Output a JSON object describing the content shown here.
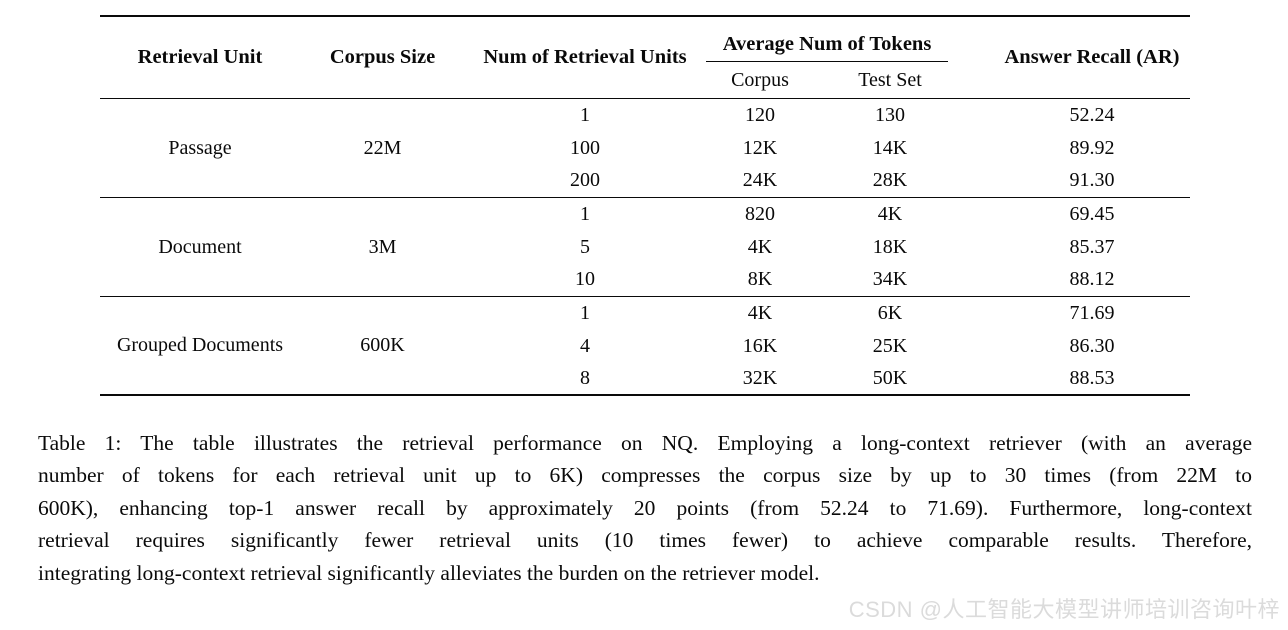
{
  "table": {
    "header": {
      "retrieval_unit": "Retrieval Unit",
      "corpus_size": "Corpus Size",
      "num_units": "Num of Retrieval Units",
      "avg_tokens": "Average Num of Tokens",
      "corpus": "Corpus",
      "test_set": "Test Set",
      "answer_recall": "Answer Recall (AR)"
    },
    "groups": [
      {
        "unit": "Passage",
        "size": "22M",
        "rows": [
          {
            "n": "1",
            "corpus": "120",
            "test": "130",
            "ar": "52.24"
          },
          {
            "n": "100",
            "corpus": "12K",
            "test": "14K",
            "ar": "89.92"
          },
          {
            "n": "200",
            "corpus": "24K",
            "test": "28K",
            "ar": "91.30"
          }
        ]
      },
      {
        "unit": "Document",
        "size": "3M",
        "rows": [
          {
            "n": "1",
            "corpus": "820",
            "test": "4K",
            "ar": "69.45"
          },
          {
            "n": "5",
            "corpus": "4K",
            "test": "18K",
            "ar": "85.37"
          },
          {
            "n": "10",
            "corpus": "8K",
            "test": "34K",
            "ar": "88.12"
          }
        ]
      },
      {
        "unit": "Grouped Documents",
        "size": "600K",
        "rows": [
          {
            "n": "1",
            "corpus": "4K",
            "test": "6K",
            "ar": "71.69"
          },
          {
            "n": "4",
            "corpus": "16K",
            "test": "25K",
            "ar": "86.30"
          },
          {
            "n": "8",
            "corpus": "32K",
            "test": "50K",
            "ar": "88.53"
          }
        ]
      }
    ]
  },
  "caption": {
    "lines": [
      "Table 1: The table illustrates the retrieval performance on NQ. Employing a long-context retriever (with an average",
      "number of tokens for each retrieval unit up to 6K) compresses the corpus size by up to 30 times (from 22M to",
      "600K), enhancing top-1 answer recall by approximately 20 points (from 52.24 to 71.69). Furthermore, long-context",
      "retrieval requires significantly fewer retrieval units (10 times fewer) to achieve comparable results. Therefore,",
      "integrating long-context retrieval significantly alleviates the burden on the retriever model."
    ]
  },
  "watermark": {
    "text": "CSDN @人工智能大模型讲师培训咨询叶梓"
  },
  "colors": {
    "text": "#0a0a0a",
    "rule": "#0a0a0a",
    "watermark": "#dbdbdb",
    "background": "#ffffff"
  }
}
